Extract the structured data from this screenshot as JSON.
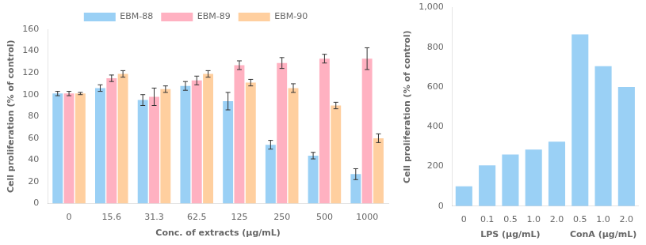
{
  "chart_data": [
    {
      "type": "bar",
      "categories": [
        "0",
        "15.6",
        "31.3",
        "62.5",
        "125",
        "250",
        "500",
        "1000"
      ],
      "series": [
        {
          "name": "EBM-88",
          "values": [
            101,
            106,
            95,
            108,
            94,
            54,
            44,
            27
          ],
          "errors": [
            2,
            3,
            5,
            4,
            8,
            4,
            3,
            5
          ]
        },
        {
          "name": "EBM-89",
          "values": [
            101,
            115,
            98,
            113,
            127,
            129,
            133,
            133
          ],
          "errors": [
            2,
            3,
            8,
            4,
            4,
            5,
            4,
            10
          ]
        },
        {
          "name": "EBM-90",
          "values": [
            101,
            119,
            105,
            119,
            111,
            106,
            90,
            60
          ],
          "errors": [
            1,
            3,
            3,
            3,
            3,
            4,
            3,
            4
          ]
        }
      ],
      "xlabel": "Conc. of extracts (μg/mL)",
      "ylabel": "Cell proliferation (% of control)",
      "ylim": [
        0,
        160
      ],
      "yticks": [
        0,
        20,
        40,
        60,
        80,
        100,
        120,
        140,
        160
      ],
      "legend": "top",
      "grid": false
    },
    {
      "type": "bar",
      "categories": [
        "0",
        "0.1",
        "0.5",
        "1.0",
        "2.0",
        "0.5",
        "1.0",
        "2.0"
      ],
      "values": [
        100,
        205,
        260,
        285,
        325,
        865,
        705,
        600
      ],
      "ylabel": "Cell proliferation (% of control)",
      "ylim": [
        0,
        1000
      ],
      "yticks": [
        0,
        200,
        400,
        600,
        800,
        1000
      ],
      "annotations": [
        {
          "text": "LPS (μg/mL)",
          "span": 5
        },
        {
          "text": "ConA (μg/mL)",
          "span": 3
        }
      ],
      "grid": false
    }
  ]
}
